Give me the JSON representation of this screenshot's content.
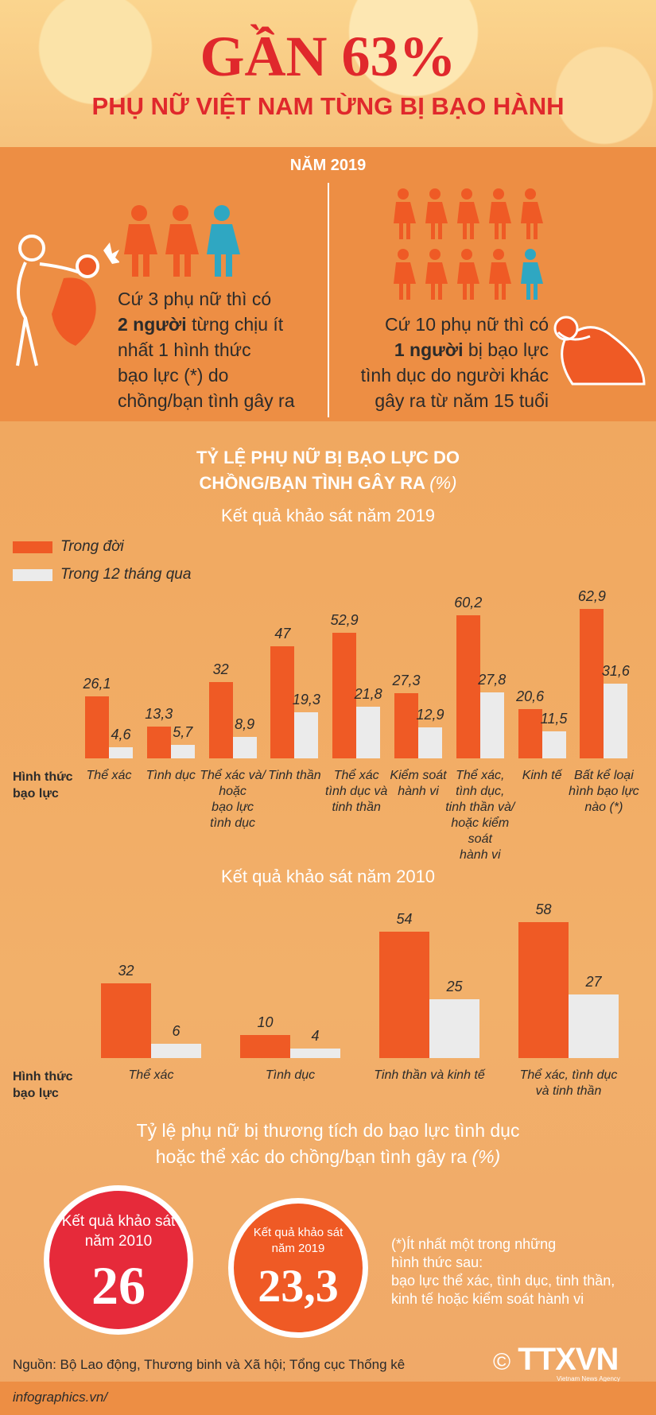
{
  "header": {
    "title": "GẦN 63%",
    "subtitle": "PHỤ NỮ VIỆT NAM TỪNG BỊ BẠO HÀNH"
  },
  "section2019": {
    "year_label": "NĂM 2019",
    "left": {
      "pre": "Cứ 3 phụ nữ thì có",
      "bold": "2 người",
      "rest": "từng chịu ít",
      "line3": "nhất 1 hình thức",
      "line4": "bạo lực (*) do",
      "line5": "chồng/bạn tình gây ra"
    },
    "right": {
      "line1": "Cứ 10 phụ nữ thì có",
      "bold": "1 người",
      "rest": "bị bạo lực",
      "line3": "tình dục do người khác",
      "line4": "gây ra từ năm 15 tuổi"
    }
  },
  "chart_heading": {
    "line1": "TỶ LỆ PHỤ NỮ BỊ BẠO LỰC DO",
    "line2": "CHỒNG/BẠN TÌNH GÂY RA",
    "unit": "(%)"
  },
  "colors": {
    "lifetime": "#ef5a25",
    "last12": "#ebebeb",
    "circle2010": "#e62a3a",
    "circle2019": "#ef5a25"
  },
  "legend": {
    "lifetime": "Trong đời",
    "last12": "Trong 12 tháng qua"
  },
  "axis_label": {
    "line1": "Hình thức",
    "line2": "bạo lực"
  },
  "chart_data": [
    {
      "type": "bar",
      "title": "Kết quả khảo sát năm 2019",
      "categories": [
        [
          "Thể xác"
        ],
        [
          "Tình dục"
        ],
        [
          "Thể xác và/",
          "hoặc",
          "bạo lực",
          "tình dục"
        ],
        [
          "Tinh thần"
        ],
        [
          "Thể xác",
          "tình dục và",
          "tinh thần"
        ],
        [
          "Kiểm soát",
          "hành vi"
        ],
        [
          "Thể xác,",
          "tình dục,",
          "tinh thần và/",
          "hoặc kiểm soát",
          "hành vi"
        ],
        [
          "Kinh tế"
        ],
        [
          "Bất kể loại",
          "hình bạo lực",
          "nào (*)"
        ]
      ],
      "series": [
        {
          "name": "Trong đời",
          "values": [
            26.1,
            13.3,
            32,
            47,
            52.9,
            27.3,
            60.2,
            20.6,
            62.9
          ],
          "labels": [
            "26,1",
            "13,3",
            "32",
            "47",
            "52,9",
            "27,3",
            "60,2",
            "20,6",
            "62,9"
          ]
        },
        {
          "name": "Trong 12 tháng qua",
          "values": [
            4.6,
            5.7,
            8.9,
            19.3,
            21.8,
            12.9,
            27.8,
            11.5,
            31.6
          ],
          "labels": [
            "4,6",
            "5,7",
            "8,9",
            "19,3",
            "21,8",
            "12,9",
            "27,8",
            "11,5",
            "31,6"
          ]
        }
      ]
    },
    {
      "type": "bar",
      "title": "Kết quả khảo sát năm 2010",
      "categories": [
        [
          "Thể xác"
        ],
        [
          "Tình dục"
        ],
        [
          "Tinh thần và kinh tế"
        ],
        [
          "Thể xác, tình dục",
          "và tinh thần"
        ]
      ],
      "series": [
        {
          "name": "Trong đời",
          "values": [
            32,
            10,
            54,
            58
          ],
          "labels": [
            "32",
            "10",
            "54",
            "58"
          ]
        },
        {
          "name": "Trong 12 tháng qua",
          "values": [
            6,
            4,
            25,
            27
          ],
          "labels": [
            "6",
            "4",
            "25",
            "27"
          ]
        }
      ]
    }
  ],
  "injury": {
    "line1": "Tỷ lệ phụ nữ bị thương tích do bạo lực tình dục",
    "line2": "hoặc thể xác do chồng/bạn tình gây ra",
    "unit": "(%)",
    "c2010": {
      "label1": "Kết quả khảo sát",
      "label2": "năm 2010",
      "value": "26"
    },
    "c2019": {
      "label1": "Kết quả khảo sát",
      "label2": "năm 2019",
      "value": "23,3"
    }
  },
  "note": {
    "line1": "(*)Ít nhất một trong những",
    "line2": "hình thức sau:",
    "line3": "bạo lực thể xác, tình dục, tinh thần,",
    "line4": "kinh tế hoặc kiểm soát hành vi"
  },
  "source": "Nguồn: Bộ Lao động, Thương binh và Xã hội; Tổng cục Thống kê",
  "footer": "infographics.vn/",
  "logo": {
    "copyright": "©",
    "text": "TTXVN",
    "sub": "Vietnam News Agency"
  }
}
